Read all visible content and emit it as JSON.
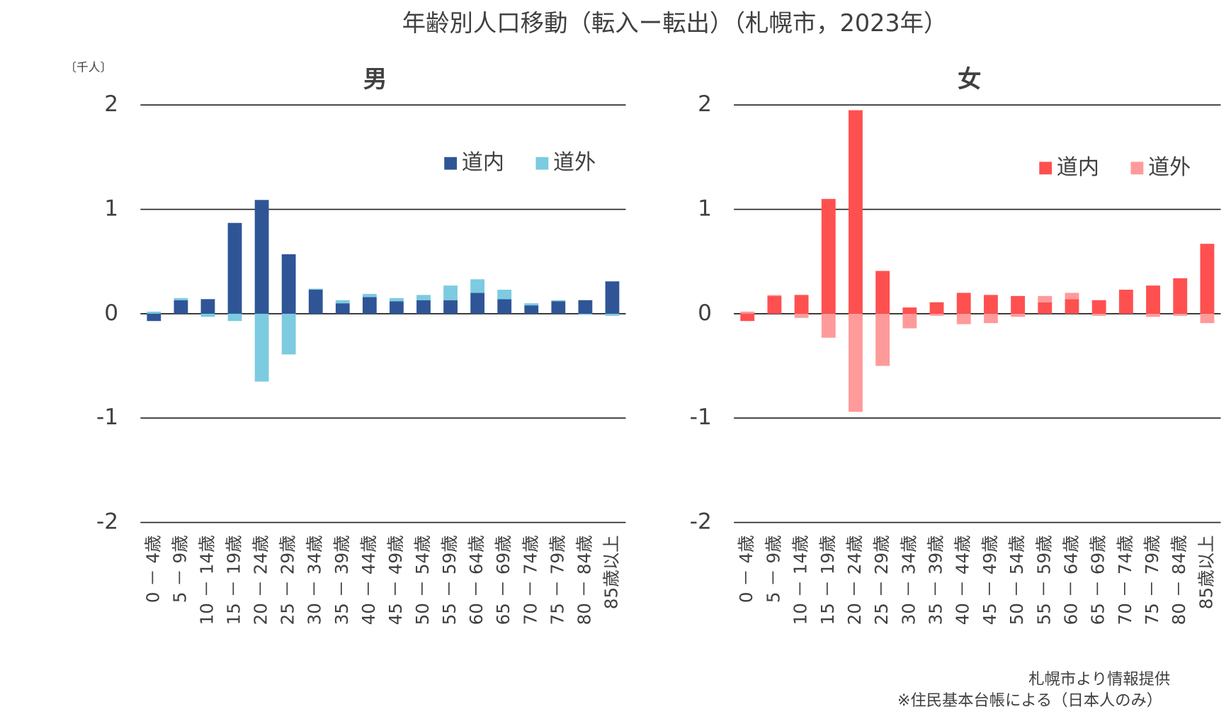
{
  "title": "年齢別人口移動（転入ー転出）（札幌市，2023年）",
  "unit": "〔千人〕",
  "notes": [
    "札幌市より情報提供",
    "※住民基本台帳による（日本人のみ）"
  ],
  "chart_data": [
    {
      "type": "stacked_bar",
      "title": "男",
      "ylim": [
        -2,
        2
      ],
      "yticks": [
        -2,
        -1,
        0,
        1,
        2
      ],
      "grid": true,
      "legend": "upper right",
      "categories": [
        "0 － 4歳",
        "5 － 9歳",
        "10 － 14歳",
        "15 － 19歳",
        "20 － 24歳",
        "25 － 29歳",
        "30 － 34歳",
        "35 － 39歳",
        "40 － 44歳",
        "45 － 49歳",
        "50 － 54歳",
        "55 － 59歳",
        "60 － 64歳",
        "65 － 69歳",
        "70 － 74歳",
        "75 － 79歳",
        "80 － 84歳",
        "85歳以上"
      ],
      "series": [
        {
          "name": "道内",
          "color": "#2f5597",
          "values": [
            -0.07,
            0.13,
            0.14,
            0.87,
            1.09,
            0.57,
            0.23,
            0.1,
            0.16,
            0.12,
            0.13,
            0.13,
            0.2,
            0.14,
            0.08,
            0.12,
            0.13,
            0.31
          ]
        },
        {
          "name": "道外",
          "color": "#7ccbe0",
          "values": [
            0.02,
            0.02,
            -0.03,
            -0.07,
            -0.65,
            -0.39,
            0.01,
            0.03,
            0.03,
            0.03,
            0.05,
            0.14,
            0.13,
            0.09,
            0.02,
            0.01,
            -0.01,
            -0.02
          ]
        }
      ]
    },
    {
      "type": "stacked_bar",
      "title": "女",
      "ylim": [
        -2,
        2
      ],
      "yticks": [
        -2,
        -1,
        0,
        1,
        2
      ],
      "grid": true,
      "legend": "upper right",
      "categories": [
        "0 － 4歳",
        "5 － 9歳",
        "10 － 14歳",
        "15 － 19歳",
        "20 － 24歳",
        "25 － 29歳",
        "30 － 34歳",
        "35 － 39歳",
        "40 － 44歳",
        "45 － 49歳",
        "50 － 54歳",
        "55 － 59歳",
        "60 － 64歳",
        "65 － 69歳",
        "70 － 74歳",
        "75 － 79歳",
        "80 － 84歳",
        "85歳以上"
      ],
      "series": [
        {
          "name": "道内",
          "color": "#ff5050",
          "values": [
            -0.07,
            0.17,
            0.18,
            1.1,
            1.95,
            0.41,
            0.06,
            0.11,
            0.2,
            0.18,
            0.17,
            0.11,
            0.14,
            0.13,
            0.23,
            0.27,
            0.34,
            0.67
          ]
        },
        {
          "name": "道外",
          "color": "#ff9a9a",
          "values": [
            0.02,
            0.01,
            -0.04,
            -0.23,
            -0.94,
            -0.5,
            -0.14,
            -0.02,
            -0.1,
            -0.09,
            -0.03,
            0.06,
            0.06,
            -0.02,
            0,
            -0.03,
            -0.02,
            -0.09
          ]
        }
      ]
    }
  ]
}
